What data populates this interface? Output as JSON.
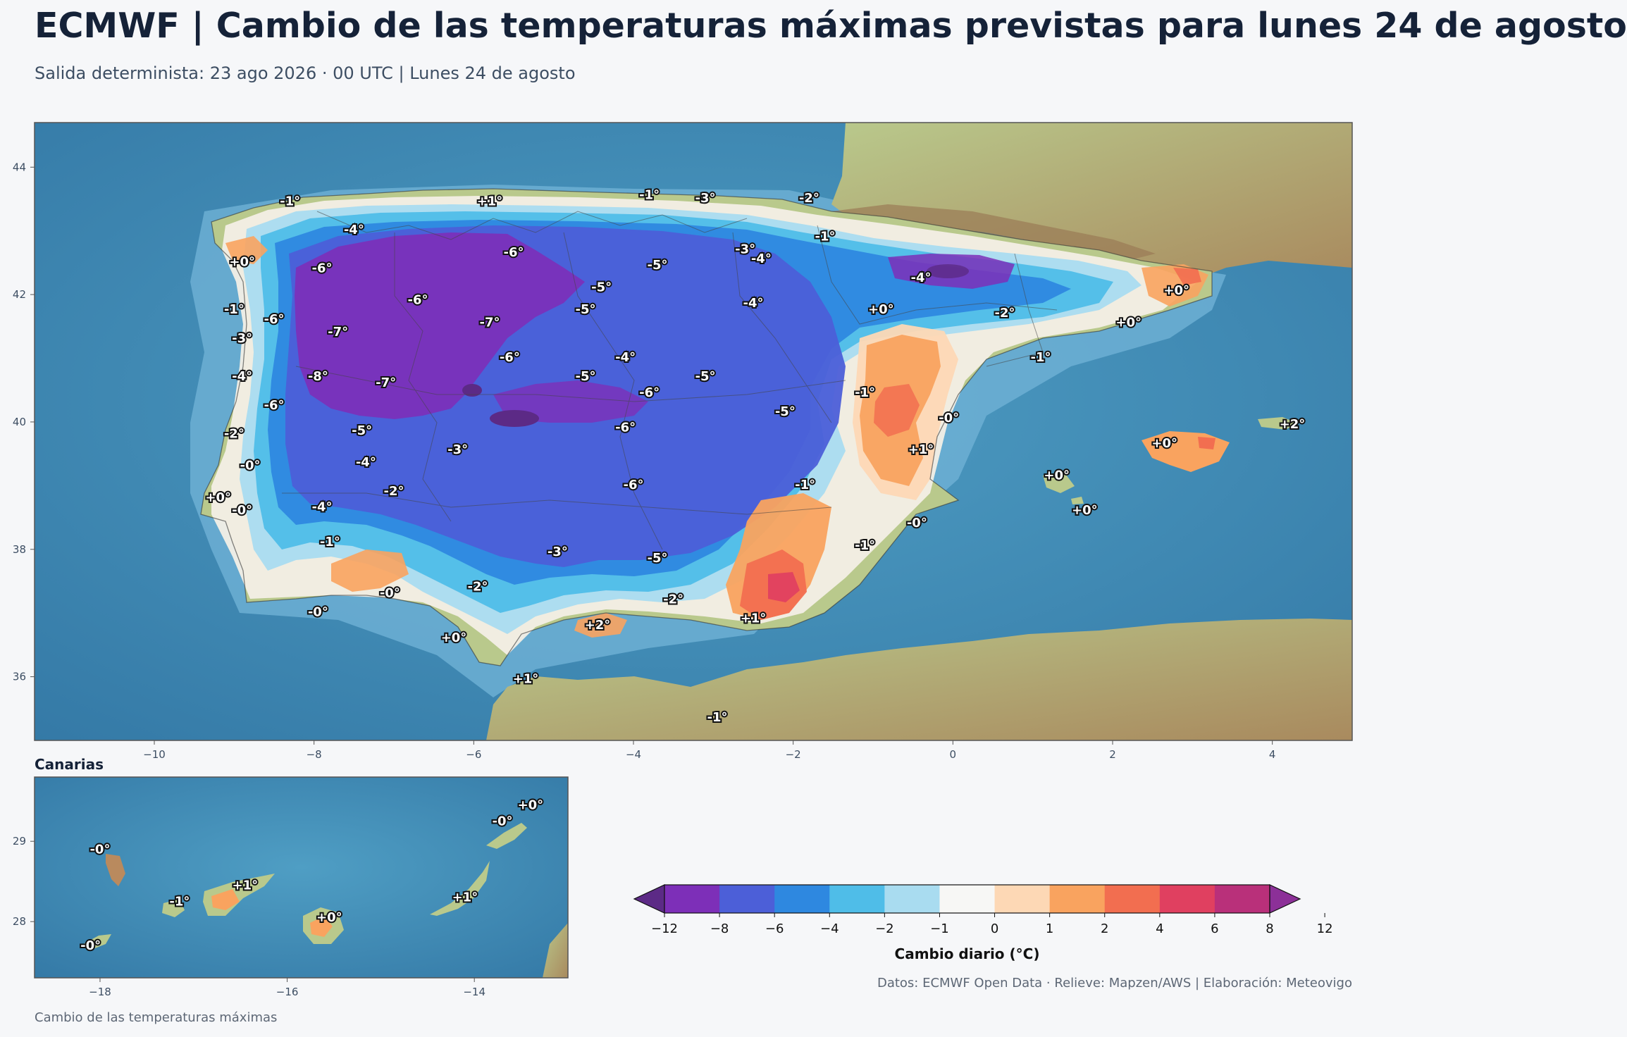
{
  "header": {
    "title": "ECMWF | Cambio de las temperaturas máximas previstas para lunes 24 de agosto",
    "subtitle": "Salida determinista: 23 ago 2026 · 00 UTC  |  Lunes 24 de agosto"
  },
  "main_map": {
    "x_ticks": [
      "−10",
      "−8",
      "−6",
      "−4",
      "−2",
      "0",
      "2",
      "4"
    ],
    "y_ticks": [
      "44",
      "42",
      "40",
      "38",
      "36"
    ],
    "point_labels": [
      {
        "lon": -8.3,
        "lat": 43.4,
        "text": "-1°"
      },
      {
        "lon": -5.8,
        "lat": 43.4,
        "text": "+1°"
      },
      {
        "lon": -3.8,
        "lat": 43.5,
        "text": "-1°"
      },
      {
        "lon": -3.1,
        "lat": 43.45,
        "text": "-3°"
      },
      {
        "lon": -1.8,
        "lat": 43.45,
        "text": "-2°"
      },
      {
        "lon": -7.5,
        "lat": 42.95,
        "text": "-4°"
      },
      {
        "lon": -5.5,
        "lat": 42.6,
        "text": "-6°"
      },
      {
        "lon": -2.6,
        "lat": 42.65,
        "text": "-3°"
      },
      {
        "lon": -2.4,
        "lat": 42.5,
        "text": "-4°"
      },
      {
        "lon": -1.6,
        "lat": 42.85,
        "text": "-1°"
      },
      {
        "lon": -8.9,
        "lat": 42.45,
        "text": "+0°"
      },
      {
        "lon": -7.9,
        "lat": 42.35,
        "text": "-6°"
      },
      {
        "lon": -3.7,
        "lat": 42.4,
        "text": "-5°"
      },
      {
        "lon": -0.4,
        "lat": 42.2,
        "text": "-4°"
      },
      {
        "lon": 2.8,
        "lat": 42.0,
        "text": "+0°"
      },
      {
        "lon": -9.0,
        "lat": 41.7,
        "text": "-1°"
      },
      {
        "lon": -6.7,
        "lat": 41.85,
        "text": "-6°"
      },
      {
        "lon": -4.4,
        "lat": 42.05,
        "text": "-5°"
      },
      {
        "lon": -4.6,
        "lat": 41.7,
        "text": "-5°"
      },
      {
        "lon": -2.5,
        "lat": 41.8,
        "text": "-4°"
      },
      {
        "lon": -0.9,
        "lat": 41.7,
        "text": "+0°"
      },
      {
        "lon": 0.65,
        "lat": 41.65,
        "text": "-2°"
      },
      {
        "lon": 2.2,
        "lat": 41.5,
        "text": "+0°"
      },
      {
        "lon": -8.5,
        "lat": 41.55,
        "text": "-6°"
      },
      {
        "lon": -7.7,
        "lat": 41.35,
        "text": "-7°"
      },
      {
        "lon": -5.8,
        "lat": 41.5,
        "text": "-7°"
      },
      {
        "lon": -8.9,
        "lat": 41.25,
        "text": "-3°"
      },
      {
        "lon": -5.55,
        "lat": 40.95,
        "text": "-6°"
      },
      {
        "lon": -4.1,
        "lat": 40.95,
        "text": "-4°"
      },
      {
        "lon": 1.1,
        "lat": 40.95,
        "text": "-1°"
      },
      {
        "lon": -8.9,
        "lat": 40.65,
        "text": "-4°"
      },
      {
        "lon": -7.95,
        "lat": 40.65,
        "text": "-8°"
      },
      {
        "lon": -7.1,
        "lat": 40.55,
        "text": "-7°"
      },
      {
        "lon": -4.6,
        "lat": 40.65,
        "text": "-5°"
      },
      {
        "lon": -3.1,
        "lat": 40.65,
        "text": "-5°"
      },
      {
        "lon": -3.8,
        "lat": 40.4,
        "text": "-6°"
      },
      {
        "lon": -1.1,
        "lat": 40.4,
        "text": "-1°"
      },
      {
        "lon": -8.5,
        "lat": 40.2,
        "text": "-6°"
      },
      {
        "lon": -2.1,
        "lat": 40.1,
        "text": "-5°"
      },
      {
        "lon": -0.05,
        "lat": 40.0,
        "text": "-0°"
      },
      {
        "lon": 4.25,
        "lat": 39.9,
        "text": "+2°"
      },
      {
        "lon": -9.0,
        "lat": 39.75,
        "text": "-2°"
      },
      {
        "lon": -7.4,
        "lat": 39.8,
        "text": "-5°"
      },
      {
        "lon": -4.1,
        "lat": 39.85,
        "text": "-6°"
      },
      {
        "lon": 2.65,
        "lat": 39.6,
        "text": "+0°"
      },
      {
        "lon": -6.2,
        "lat": 39.5,
        "text": "-3°"
      },
      {
        "lon": -0.4,
        "lat": 39.5,
        "text": "+1°"
      },
      {
        "lon": -8.8,
        "lat": 39.25,
        "text": "-0°"
      },
      {
        "lon": -7.35,
        "lat": 39.3,
        "text": "-4°"
      },
      {
        "lon": -4.0,
        "lat": 38.95,
        "text": "-6°"
      },
      {
        "lon": -1.85,
        "lat": 38.95,
        "text": "-1°"
      },
      {
        "lon": 1.3,
        "lat": 39.1,
        "text": "+0°"
      },
      {
        "lon": -7.0,
        "lat": 38.85,
        "text": "-2°"
      },
      {
        "lon": -9.2,
        "lat": 38.75,
        "text": "+0°"
      },
      {
        "lon": -8.9,
        "lat": 38.55,
        "text": "-0°"
      },
      {
        "lon": -7.9,
        "lat": 38.6,
        "text": "-4°"
      },
      {
        "lon": 1.65,
        "lat": 38.55,
        "text": "+0°"
      },
      {
        "lon": -0.45,
        "lat": 38.35,
        "text": "-0°"
      },
      {
        "lon": -7.8,
        "lat": 38.05,
        "text": "-1°"
      },
      {
        "lon": -1.1,
        "lat": 38.0,
        "text": "-1°"
      },
      {
        "lon": -4.95,
        "lat": 37.9,
        "text": "-3°"
      },
      {
        "lon": -3.7,
        "lat": 37.8,
        "text": "-5°"
      },
      {
        "lon": -5.95,
        "lat": 37.35,
        "text": "-2°"
      },
      {
        "lon": -7.05,
        "lat": 37.25,
        "text": "-0°"
      },
      {
        "lon": -3.5,
        "lat": 37.15,
        "text": "-2°"
      },
      {
        "lon": -7.95,
        "lat": 36.95,
        "text": "-0°"
      },
      {
        "lon": -4.45,
        "lat": 36.75,
        "text": "+2°"
      },
      {
        "lon": -2.5,
        "lat": 36.85,
        "text": "+1°"
      },
      {
        "lon": -6.25,
        "lat": 36.55,
        "text": "+0°"
      },
      {
        "lon": -5.35,
        "lat": 35.9,
        "text": "+1°"
      },
      {
        "lon": -2.95,
        "lat": 35.3,
        "text": "-1°"
      }
    ]
  },
  "inset_map": {
    "title": "Canarias",
    "x_ticks": [
      "−18",
      "−16",
      "−14"
    ],
    "y_ticks": [
      "29",
      "28"
    ],
    "point_labels": [
      {
        "lon": -18.0,
        "lat": 28.85,
        "text": "-0°"
      },
      {
        "lon": -17.15,
        "lat": 28.2,
        "text": "-1°"
      },
      {
        "lon": -16.45,
        "lat": 28.4,
        "text": "+1°"
      },
      {
        "lon": -15.55,
        "lat": 28.0,
        "text": "+0°"
      },
      {
        "lon": -14.1,
        "lat": 28.25,
        "text": "+1°"
      },
      {
        "lon": -13.7,
        "lat": 29.2,
        "text": "-0°"
      },
      {
        "lon": -13.4,
        "lat": 29.4,
        "text": "+0°"
      },
      {
        "lon": -18.1,
        "lat": 27.65,
        "text": "-0°"
      }
    ]
  },
  "colorbar": {
    "label": "Cambio diario (°C)",
    "ticks": [
      "−12",
      "−8",
      "−6",
      "−4",
      "−2",
      "−1",
      "0",
      "1",
      "2",
      "4",
      "6",
      "8",
      "12"
    ],
    "colors": [
      "#5c2a86",
      "#7d2fb8",
      "#4c5fd8",
      "#2e88e0",
      "#4fbde8",
      "#a9dcf0",
      "#f7f7f5",
      "#fdd8b5",
      "#f9a35f",
      "#f26e50",
      "#e04060",
      "#b9307a",
      "#8c3098"
    ]
  },
  "footer": {
    "left": "Cambio de las temperaturas máximas",
    "right": "Datos: ECMWF Open Data · Relieve: Mapzen/AWS  |  Elaboración: Meteovigo"
  }
}
